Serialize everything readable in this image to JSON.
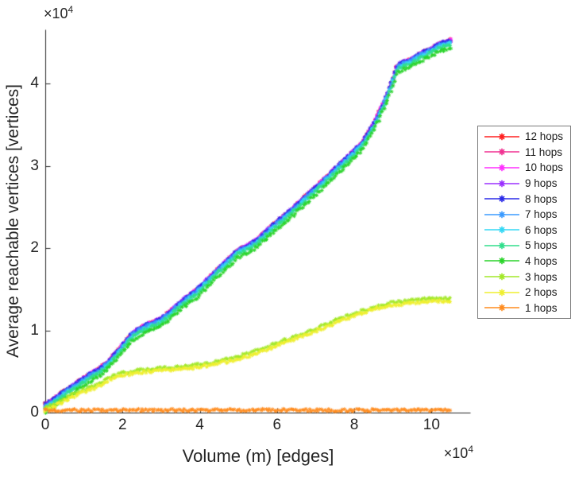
{
  "figure": {
    "background": "#ffffff",
    "axis_color": "#262626"
  },
  "axes": {
    "x": {
      "label": "Volume (m) [edges]",
      "ticks": [
        0,
        2,
        4,
        6,
        8,
        10
      ],
      "lim": [
        0,
        11
      ],
      "exp_base": "×10",
      "exp_power": "4"
    },
    "y": {
      "label": "Average reachable vertices [vertices]",
      "ticks": [
        0,
        1,
        2,
        3,
        4
      ],
      "lim": [
        0,
        4.66
      ],
      "exp_base": "×10",
      "exp_power": "4"
    }
  },
  "legend": {
    "border_color": "#7a7a7a",
    "items": [
      "12 hops",
      "11 hops",
      "10 hops",
      "9 hops",
      "8 hops",
      "7 hops",
      "6 hops",
      "5 hops",
      "4 hops",
      "3 hops",
      "2 hops",
      "1 hops"
    ]
  },
  "chart_data": {
    "type": "line",
    "marker": "asterisk",
    "units_note": "x and y values are in units of 10^4 (x: edges, y: vertices)",
    "xlabel": "Volume (m) [edges]",
    "ylabel": "Average reachable vertices [vertices]",
    "xlim": [
      0,
      11
    ],
    "ylim": [
      0,
      4.66
    ],
    "grid": false,
    "legend_position": "right-outside",
    "bases": {
      "cluster": {
        "x": [
          0,
          0.2,
          0.4,
          0.6,
          0.9,
          1.2,
          1.4,
          1.6,
          1.8,
          2.0,
          2.2,
          2.45,
          2.7,
          3.0,
          3.3,
          3.6,
          3.9,
          4.2,
          4.5,
          4.8,
          5.0,
          5.2,
          5.5,
          5.8,
          6.1,
          6.4,
          6.7,
          7.0,
          7.3,
          7.6,
          7.9,
          8.2,
          8.5,
          8.8,
          9.0,
          9.1,
          9.25,
          9.45,
          9.7,
          10.0,
          10.2,
          10.5
        ],
        "y": [
          0.04,
          0.1,
          0.17,
          0.23,
          0.33,
          0.42,
          0.47,
          0.55,
          0.65,
          0.76,
          0.88,
          0.97,
          1.02,
          1.08,
          1.2,
          1.32,
          1.42,
          1.56,
          1.7,
          1.83,
          1.92,
          1.96,
          2.05,
          2.18,
          2.3,
          2.42,
          2.55,
          2.68,
          2.81,
          2.95,
          3.08,
          3.22,
          3.45,
          3.75,
          4.0,
          4.15,
          4.2,
          4.23,
          4.3,
          4.37,
          4.42,
          4.47
        ]
      },
      "mid": {
        "x": [
          0,
          0.25,
          0.5,
          0.9,
          1.3,
          1.6,
          1.9,
          2.3,
          2.7,
          3.0,
          3.4,
          3.8,
          4.2,
          4.6,
          5.0,
          5.4,
          5.8,
          6.2,
          6.6,
          7.0,
          7.4,
          7.8,
          8.2,
          8.6,
          9.0,
          9.4,
          9.8,
          10.2,
          10.5
        ],
        "y": [
          0.02,
          0.08,
          0.14,
          0.23,
          0.3,
          0.38,
          0.44,
          0.48,
          0.5,
          0.51,
          0.52,
          0.54,
          0.57,
          0.61,
          0.65,
          0.71,
          0.78,
          0.85,
          0.92,
          0.99,
          1.07,
          1.14,
          1.21,
          1.27,
          1.31,
          1.33,
          1.35,
          1.36,
          1.35
        ]
      },
      "flat": {
        "x": [
          0,
          10.5
        ],
        "y": [
          0.03,
          0.03
        ]
      }
    },
    "series": [
      {
        "label": "12 hops",
        "color": "#FF2020",
        "base": "cluster",
        "offset": 0.06
      },
      {
        "label": "11 hops",
        "color": "#F03292",
        "base": "cluster",
        "offset": 0.06
      },
      {
        "label": "10 hops",
        "color": "#FF30FF",
        "base": "cluster",
        "offset": 0.06
      },
      {
        "label": "9 hops",
        "color": "#9B30FF",
        "base": "cluster",
        "offset": 0.06
      },
      {
        "label": "8 hops",
        "color": "#2B2BE8",
        "base": "cluster",
        "offset": 0.06
      },
      {
        "label": "7 hops",
        "color": "#3B9BFF",
        "base": "cluster",
        "offset": 0.045
      },
      {
        "label": "6 hops",
        "color": "#35D8F5",
        "base": "cluster",
        "offset": 0.025
      },
      {
        "label": "5 hops",
        "color": "#30DE8C",
        "base": "cluster",
        "offset": 0.01
      },
      {
        "label": "4 hops",
        "color": "#2BD42B",
        "base": "cluster",
        "offset": -0.03
      },
      {
        "label": "3 hops",
        "color": "#A2E828",
        "base": "mid",
        "offset": 0.03
      },
      {
        "label": "2 hops",
        "color": "#EFEF2F",
        "base": "mid",
        "offset": 0
      },
      {
        "label": "1 hops",
        "color": "#FF8C1F",
        "base": "flat",
        "offset": 0
      }
    ]
  }
}
